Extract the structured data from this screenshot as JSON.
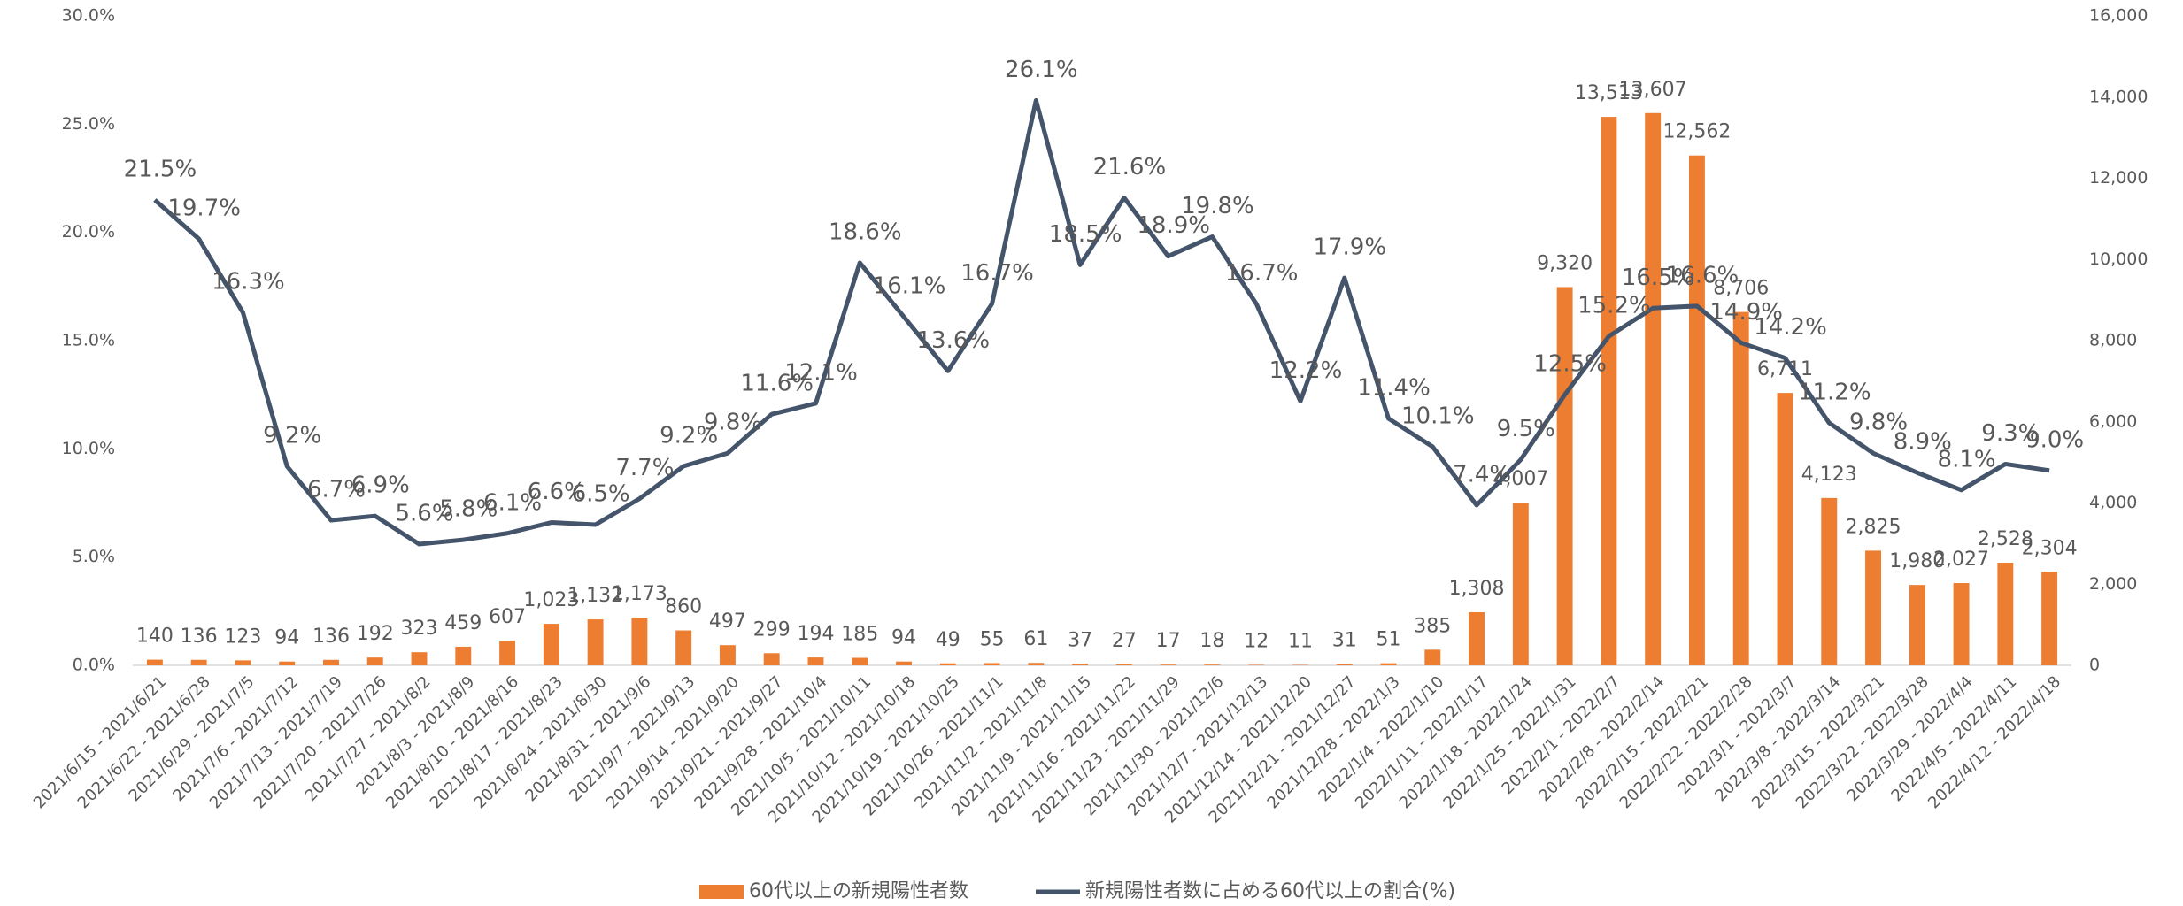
{
  "chart_data": {
    "type": "bar_line",
    "categories": [
      "2021/6/15 - 2021/6/21",
      "2021/6/22 - 2021/6/28",
      "2021/6/29 - 2021/7/5",
      "2021/7/6 - 2021/7/12",
      "2021/7/13 - 2021/7/19",
      "2021/7/20 - 2021/7/26",
      "2021/7/27 - 2021/8/2",
      "2021/8/3 - 2021/8/9",
      "2021/8/10 - 2021/8/16",
      "2021/8/17 - 2021/8/23",
      "2021/8/24 - 2021/8/30",
      "2021/8/31 - 2021/9/6",
      "2021/9/7 - 2021/9/13",
      "2021/9/14 - 2021/9/20",
      "2021/9/21 - 2021/9/27",
      "2021/9/28 - 2021/10/4",
      "2021/10/5 - 2021/10/11",
      "2021/10/12 - 2021/10/18",
      "2021/10/19 - 2021/10/25",
      "2021/10/26 - 2021/11/1",
      "2021/11/2 - 2021/11/8",
      "2021/11/9 - 2021/11/15",
      "2021/11/16 - 2021/11/22",
      "2021/11/23 - 2021/11/29",
      "2021/11/30 - 2021/12/6",
      "2021/12/7 - 2021/12/13",
      "2021/12/14 - 2021/12/20",
      "2021/12/21 - 2021/12/27",
      "2021/12/28 - 2022/1/3",
      "2022/1/4 - 2022/1/10",
      "2022/1/11 - 2022/1/17",
      "2022/1/18 - 2022/1/24",
      "2022/1/25 - 2022/1/31",
      "2022/2/1 - 2022/2/7",
      "2022/2/8 - 2022/2/14",
      "2022/2/15 - 2022/2/21",
      "2022/2/22 - 2022/2/28",
      "2022/3/1 - 2022/3/7",
      "2022/3/8 - 2022/3/14",
      "2022/3/15 - 2022/3/21",
      "2022/3/22 - 2022/3/28",
      "2022/3/29 - 2022/4/4",
      "2022/4/5 - 2022/4/11",
      "2022/4/12 - 2022/4/18"
    ],
    "series": [
      {
        "name": "60代以上の新規陽性者数",
        "color": "#ed7d31",
        "axis": "y2",
        "values": [
          140,
          136,
          123,
          94,
          136,
          192,
          323,
          459,
          607,
          1023,
          1132,
          1173,
          860,
          497,
          299,
          194,
          185,
          94,
          49,
          55,
          61,
          37,
          27,
          17,
          18,
          12,
          11,
          31,
          51,
          385,
          1308,
          4007,
          9320,
          13513,
          13607,
          12562,
          8706,
          6711,
          4123,
          2825,
          1980,
          2027,
          2528,
          2304
        ],
        "value_labels": [
          "140",
          "136",
          "123",
          "94",
          "136",
          "192",
          "323",
          "459",
          "607",
          "1,023",
          "1,132",
          "1,173",
          "860",
          "497",
          "299",
          "194",
          "185",
          "94",
          "49",
          "55",
          "61",
          "37",
          "27",
          "17",
          "18",
          "12",
          "11",
          "31",
          "51",
          "385",
          "1,308",
          "4,007",
          "9,320",
          "13,513",
          "13,607",
          "12,562",
          "8,706",
          "6,711",
          "4,123",
          "2,825",
          "1,980",
          "2,027",
          "2,528",
          "2,304"
        ]
      },
      {
        "name": "新規陽性者数に占める60代以上の割合(%)",
        "color": "#44546a",
        "type": "line",
        "values": [
          21.5,
          19.7,
          16.3,
          9.2,
          6.7,
          6.9,
          5.6,
          5.8,
          6.1,
          6.6,
          6.5,
          7.7,
          9.2,
          9.8,
          11.6,
          12.1,
          18.6,
          16.1,
          13.6,
          16.7,
          26.1,
          18.5,
          21.6,
          18.9,
          19.8,
          16.7,
          12.2,
          17.9,
          11.4,
          10.1,
          7.4,
          9.5,
          12.5,
          15.2,
          16.5,
          16.6,
          14.9,
          14.2,
          11.2,
          9.8,
          8.9,
          8.1,
          9.3,
          9.0
        ],
        "value_labels": [
          "21.5%",
          "19.7%",
          "16.3%",
          "9.2%",
          "6.7%",
          "6.9%",
          "5.6%",
          "5.8%",
          "6.1%",
          "6.6%",
          "6.5%",
          "7.7%",
          "9.2%",
          "9.8%",
          "11.6%",
          "12.1%",
          "18.6%",
          "16.1%",
          "13.6%",
          "16.7%",
          "26.1%",
          "18.5%",
          "21.6%",
          "18.9%",
          "19.8%",
          "16.7%",
          "12.2%",
          "17.9%",
          "11.4%",
          "10.1%",
          "7.4%",
          "9.5%",
          "12.5%",
          "15.2%",
          "16.5%",
          "16.6%",
          "14.9%",
          "14.2%",
          "11.2%",
          "9.8%",
          "8.9%",
          "8.1%",
          "9.3%",
          "9.0%"
        ]
      }
    ],
    "ylim": [
      0,
      30
    ],
    "yticks": [
      {
        "value": 0,
        "label": "0.0%"
      },
      {
        "value": 5,
        "label": "5.0%"
      },
      {
        "value": 10,
        "label": "10.0%"
      },
      {
        "value": 15,
        "label": "15.0%"
      },
      {
        "value": 20,
        "label": "20.0%"
      },
      {
        "value": 25,
        "label": "25.0%"
      },
      {
        "value": 30,
        "label": "30.0%"
      }
    ],
    "y2lim": [
      0,
      16000
    ],
    "y2ticks": [
      0,
      {
        "value": 2000,
        "label": "2,000"
      },
      {
        "value": 4000,
        "label": "4,000"
      },
      {
        "value": 6000,
        "label": "6,000"
      },
      {
        "value": 8000,
        "label": "8,000"
      },
      {
        "value": 10000,
        "label": "10,000"
      },
      {
        "value": 12000,
        "label": "12,000"
      },
      {
        "value": 14000,
        "label": "14,000"
      },
      {
        "value": 16000,
        "label": "16,000"
      }
    ],
    "legend": "bottom"
  }
}
